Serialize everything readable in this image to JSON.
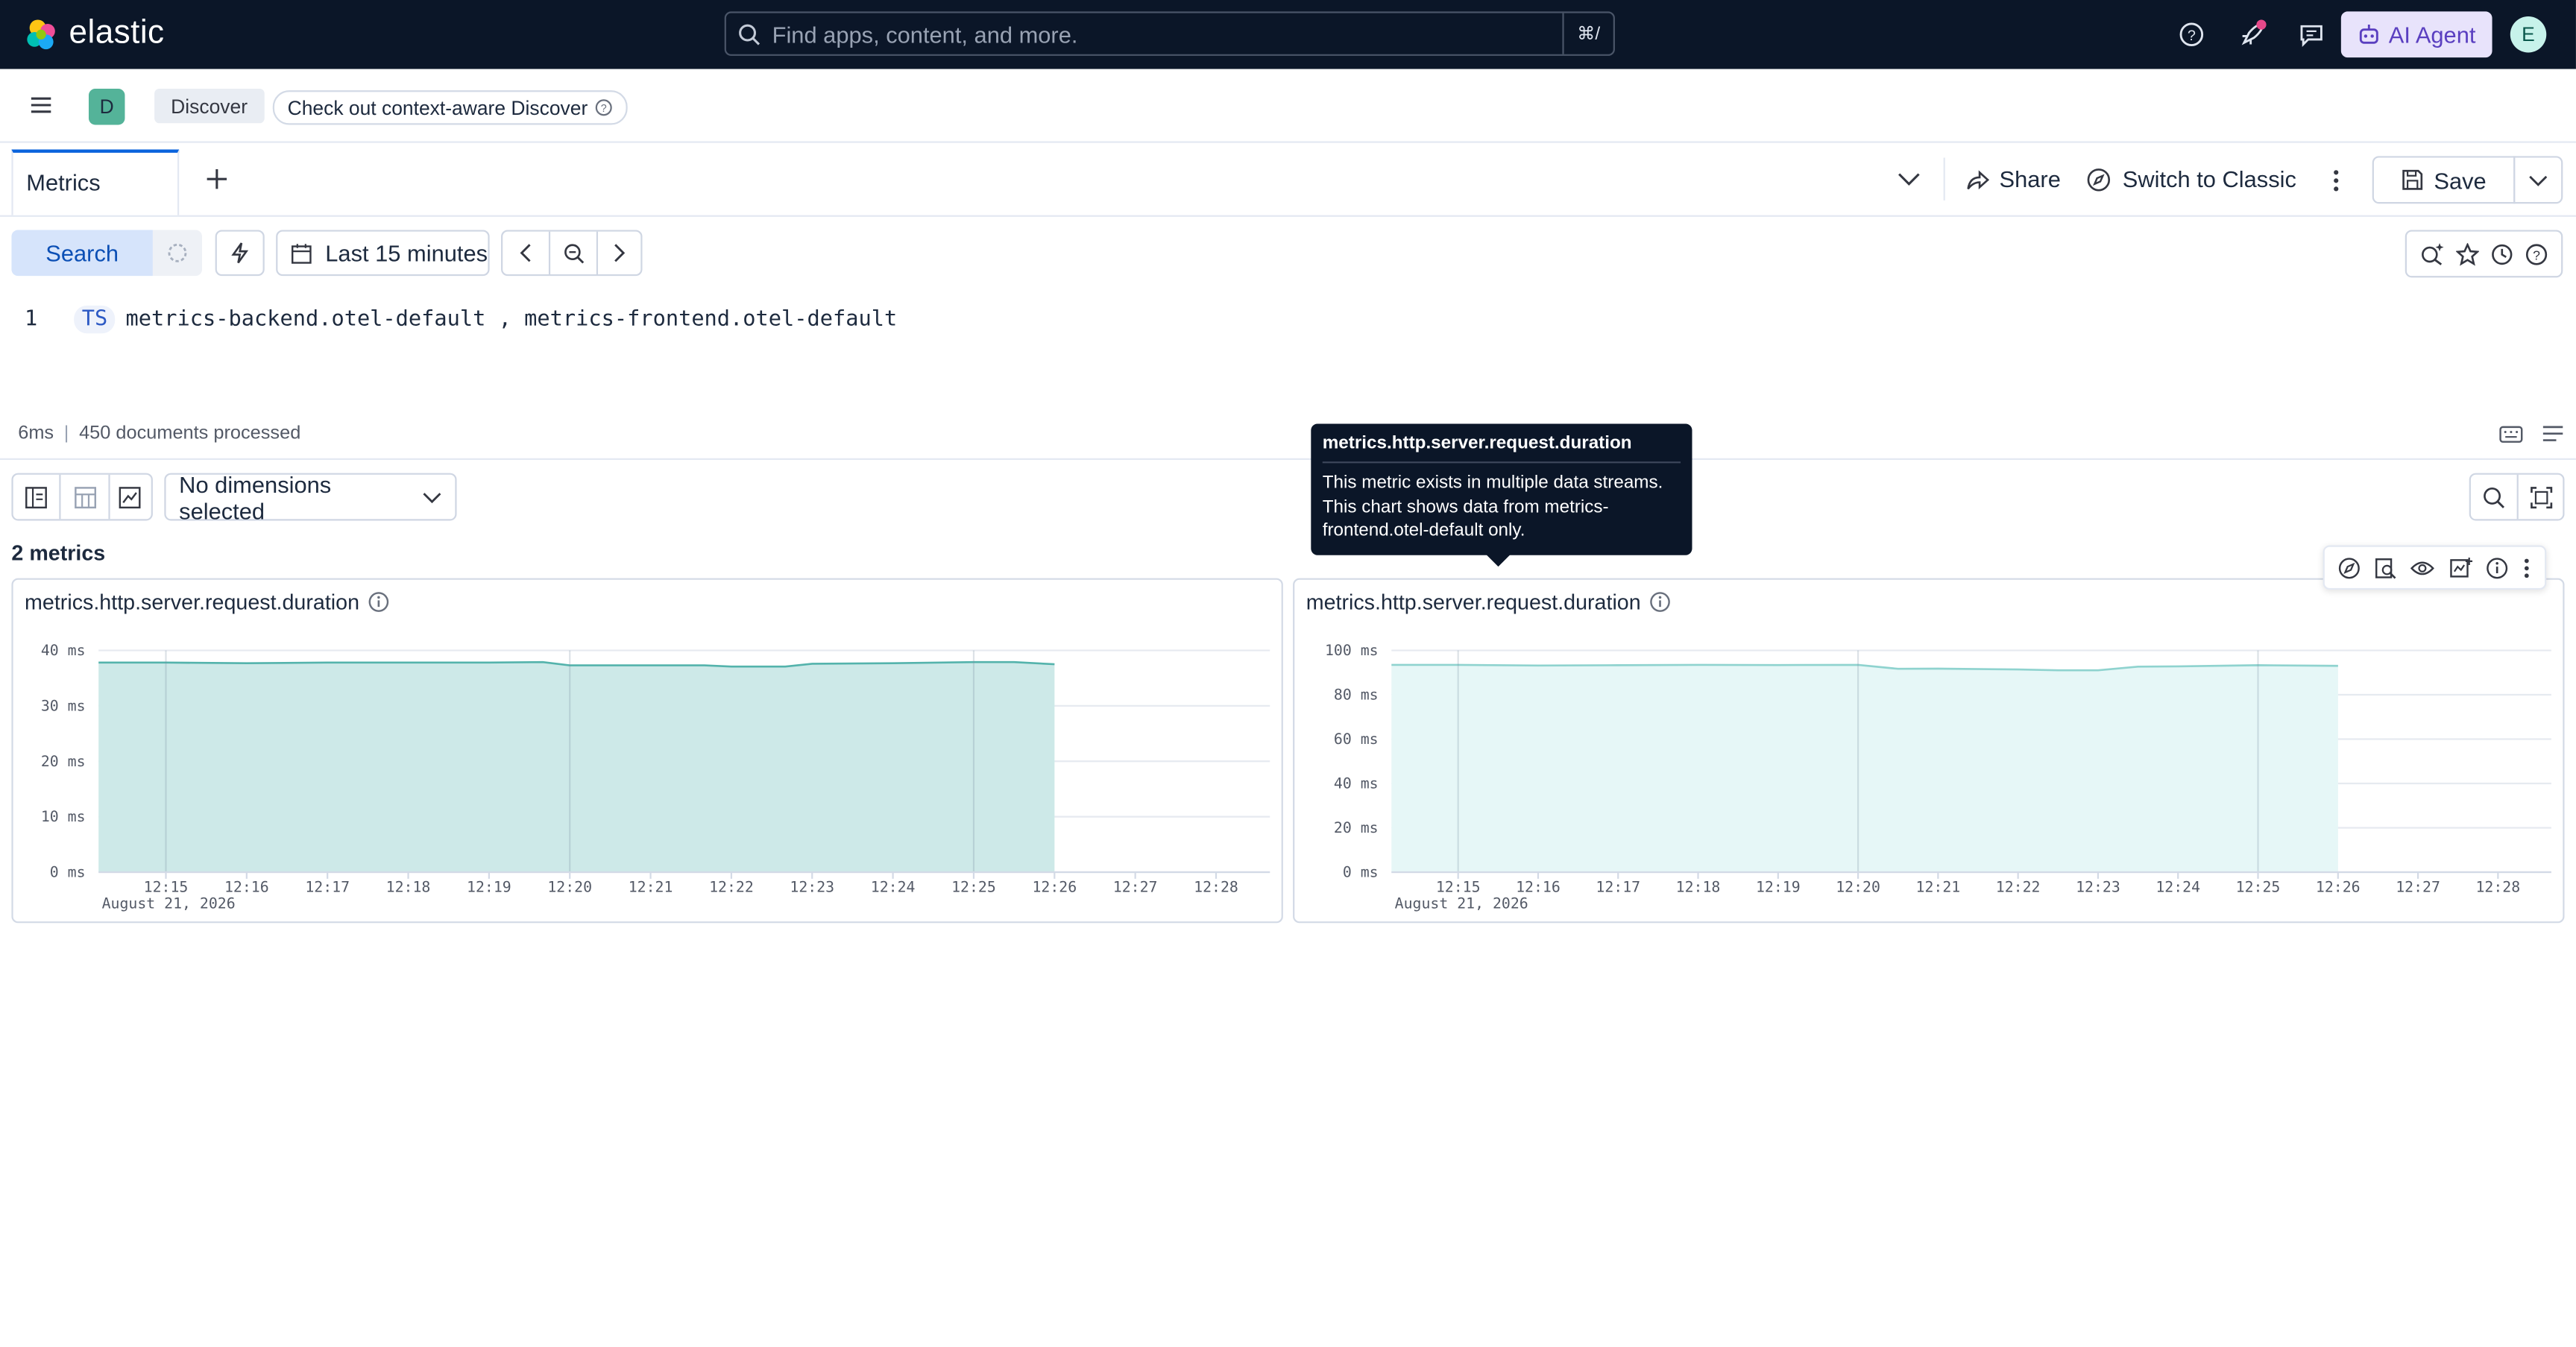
{
  "app": {
    "logo_text": "elastic",
    "search_placeholder": "Find apps, content, and more.",
    "search_shortcut": "⌘/",
    "ai_agent_label": "AI Agent",
    "user_initial": "E"
  },
  "breadcrumbs": {
    "space_initial": "D",
    "current": "Discover",
    "context_link": "Check out context-aware Discover"
  },
  "tabs": {
    "active_label": "Metrics",
    "share_label": "Share",
    "switch_classic_label": "Switch to Classic",
    "save_label": "Save"
  },
  "query": {
    "search_label": "Search",
    "time_range": "Last 15 minutes",
    "line_number": "1",
    "command": "TS",
    "sources": "metrics-backend.otel-default , metrics-frontend.otel-default"
  },
  "status": {
    "duration": "6ms",
    "documents": "450 documents processed"
  },
  "metrics_toolbar": {
    "dimensions_label": "No dimensions selected",
    "count_label": "2 metrics"
  },
  "tooltip": {
    "title": "metrics.http.server.request.duration",
    "body": "This metric exists in multiple data streams. This chart shows data from metrics-frontend.otel-default only."
  },
  "colors": {
    "chart1_fill": "#cde9e8",
    "chart1_line": "#54b3ac",
    "chart2_fill": "#e6f7f7",
    "chart2_line": "#8fd3cf",
    "top_bar": "#0b1628",
    "accent": "#0b64dd"
  },
  "chart_data": [
    {
      "type": "area",
      "title": "metrics.http.server.request.duration",
      "y_unit": "ms",
      "y_ticks": [
        "0 ms",
        "10 ms",
        "20 ms",
        "30 ms",
        "40 ms"
      ],
      "ylim": [
        0,
        40
      ],
      "x_ticks": [
        "12:15",
        "12:16",
        "12:17",
        "12:18",
        "12:19",
        "12:20",
        "12:21",
        "12:22",
        "12:23",
        "12:24",
        "12:25",
        "12:26",
        "12:27",
        "12:28"
      ],
      "x_sub_label": "August 21, 2026",
      "x_range": [
        "12:14:10",
        "12:28:40"
      ],
      "series": [
        {
          "x": [
            "12:14:10",
            "12:15:00",
            "12:16:00",
            "12:17:00",
            "12:18:00",
            "12:19:00",
            "12:19:40",
            "12:20:00",
            "12:21:00",
            "12:21:40",
            "12:22:00",
            "12:22:40",
            "12:23:00",
            "12:24:00",
            "12:25:00",
            "12:25:30",
            "12:26:00"
          ],
          "values": [
            37.8,
            37.8,
            37.7,
            37.8,
            37.8,
            37.8,
            37.9,
            37.3,
            37.3,
            37.3,
            37.1,
            37.1,
            37.6,
            37.7,
            37.9,
            37.9,
            37.5
          ]
        }
      ]
    },
    {
      "type": "area",
      "title": "metrics.http.server.request.duration",
      "y_unit": "ms",
      "y_ticks": [
        "0 ms",
        "20 ms",
        "40 ms",
        "60 ms",
        "80 ms",
        "100 ms"
      ],
      "ylim": [
        0,
        100
      ],
      "x_ticks": [
        "12:15",
        "12:16",
        "12:17",
        "12:18",
        "12:19",
        "12:20",
        "12:21",
        "12:22",
        "12:23",
        "12:24",
        "12:25",
        "12:26",
        "12:27",
        "12:28"
      ],
      "x_sub_label": "August 21, 2026",
      "x_range": [
        "12:14:10",
        "12:28:40"
      ],
      "series": [
        {
          "x": [
            "12:14:10",
            "12:15:00",
            "12:16:00",
            "12:17:00",
            "12:18:00",
            "12:19:00",
            "12:20:00",
            "12:20:30",
            "12:21:00",
            "12:22:00",
            "12:22:30",
            "12:23:00",
            "12:23:30",
            "12:24:00",
            "12:25:00",
            "12:26:00"
          ],
          "values": [
            93.5,
            93.5,
            93.2,
            93.3,
            93.5,
            93.4,
            93.5,
            91.7,
            91.8,
            91.4,
            91.0,
            91.0,
            92.7,
            92.8,
            93.3,
            93.0
          ]
        }
      ]
    }
  ]
}
